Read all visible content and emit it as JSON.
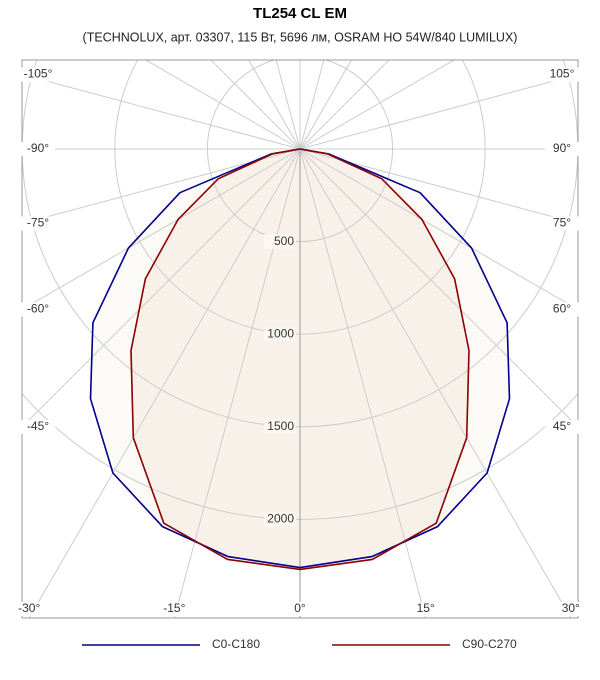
{
  "chart_data": {
    "type": "polar",
    "title": "TL254 CL EM",
    "subtitle": "(TECHNOLUX, арт. 03307, 115 Вт, 5696 лм, OSRAM HO 54W/840 LUMILUX)",
    "x": [
      -90,
      -80,
      -70,
      -60,
      -50,
      -40,
      -30,
      -20,
      -10,
      0,
      10,
      20,
      30,
      40,
      50,
      60,
      70,
      80,
      90
    ],
    "series": [
      {
        "name": "C0-C180",
        "color": "#00008b",
        "values": [
          0,
          160,
          690,
          1070,
          1460,
          1760,
          2020,
          2170,
          2235,
          2260,
          2235,
          2170,
          2020,
          1760,
          1460,
          1070,
          690,
          160,
          0
        ]
      },
      {
        "name": "C90-C270",
        "color": "#8b0000",
        "values": [
          0,
          150,
          470,
          760,
          1090,
          1420,
          1800,
          2150,
          2250,
          2270,
          2250,
          2150,
          1800,
          1420,
          1090,
          760,
          470,
          150,
          0
        ]
      }
    ],
    "rlim": [
      0,
      2500
    ],
    "rticks": [
      500,
      1000,
      1500,
      2000
    ],
    "angle_ticks": [
      {
        "value": -105,
        "label": "-105°"
      },
      {
        "value": -90,
        "label": "-90°"
      },
      {
        "value": -75,
        "label": "-75°"
      },
      {
        "value": -60,
        "label": "-60°"
      },
      {
        "value": -45,
        "label": "-45°"
      },
      {
        "value": -30,
        "label": "-30°"
      },
      {
        "value": -15,
        "label": "-15°"
      },
      {
        "value": 0,
        "label": "0°"
      },
      {
        "value": 15,
        "label": "15°"
      },
      {
        "value": 30,
        "label": "30°"
      },
      {
        "value": 45,
        "label": "45°"
      },
      {
        "value": 60,
        "label": "60°"
      },
      {
        "value": 75,
        "label": "75°"
      },
      {
        "value": 90,
        "label": "90°"
      },
      {
        "value": 105,
        "label": "105°"
      }
    ]
  }
}
